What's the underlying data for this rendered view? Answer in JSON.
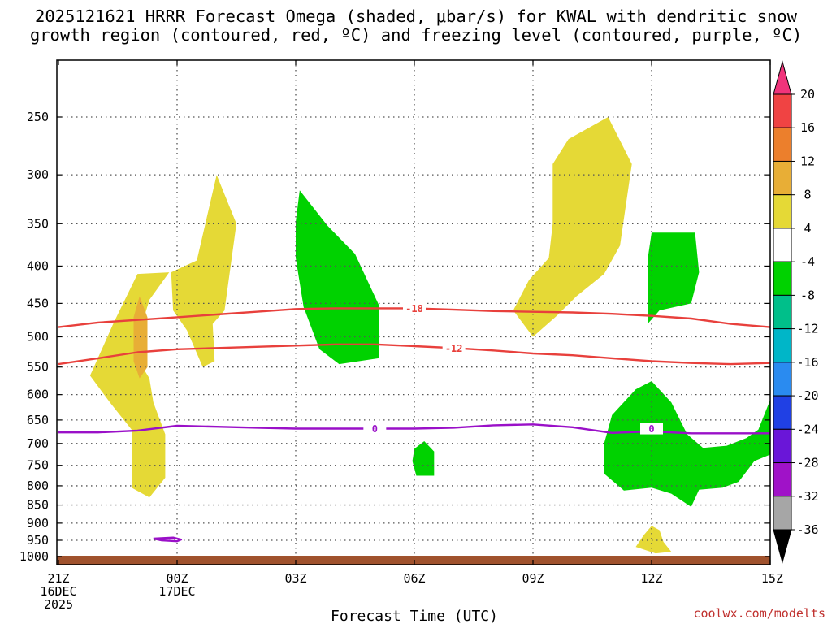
{
  "chart_data": {
    "type": "time-height",
    "title": {
      "line1": "2025121621 HRRR Forecast Omega (shaded, μbar/s) for KWAL with dendritic snow",
      "line2": "growth region (contoured, red, ºC) and freezing level (contoured, purple, ºC)"
    },
    "xlabel": "Forecast Time (UTC)",
    "credit": "coolwx.com/modelts",
    "xlim_hours": [
      0,
      18
    ],
    "ylim_hpa": [
      1000,
      200
    ],
    "x_ticks": [
      {
        "h": 0,
        "lines": [
          "21Z",
          "16DEC",
          "2025"
        ]
      },
      {
        "h": 3,
        "lines": [
          "00Z",
          "17DEC"
        ]
      },
      {
        "h": 6,
        "lines": [
          "03Z"
        ]
      },
      {
        "h": 9,
        "lines": [
          "06Z"
        ]
      },
      {
        "h": 12,
        "lines": [
          "09Z"
        ]
      },
      {
        "h": 15,
        "lines": [
          "12Z"
        ]
      },
      {
        "h": 18,
        "lines": [
          "15Z"
        ]
      }
    ],
    "y_ticks": [
      250,
      300,
      350,
      400,
      450,
      500,
      550,
      600,
      650,
      700,
      750,
      800,
      850,
      900,
      950,
      1000
    ],
    "colorbar": {
      "levels": [
        20,
        16,
        12,
        8,
        4,
        -4,
        -8,
        -12,
        -16,
        -20,
        -24,
        -28,
        -32,
        -36
      ],
      "colors": [
        "#f0347b",
        "#f04343",
        "#ec7f2c",
        "#e8ae36",
        "#e5d936",
        "#ffffff",
        "#00d200",
        "#00bf8a",
        "#00b6c8",
        "#2a8bf0",
        "#2040e4",
        "#6a16d8",
        "#a012c8",
        "#a6a6a6",
        "#000000"
      ]
    },
    "omega_regions": [
      {
        "name": "yellow-left-lower",
        "value_range": "4 to 8",
        "color": "#e5d936",
        "points": [
          [
            0.8,
            565
          ],
          [
            1.4,
            478
          ],
          [
            2.0,
            410
          ],
          [
            2.8,
            408
          ],
          [
            2.3,
            445
          ],
          [
            1.9,
            525
          ],
          [
            2.3,
            570
          ],
          [
            2.4,
            615
          ],
          [
            2.7,
            680
          ],
          [
            2.7,
            780
          ],
          [
            2.3,
            830
          ],
          [
            1.85,
            805
          ],
          [
            1.85,
            670
          ],
          [
            1.3,
            615
          ]
        ]
      },
      {
        "name": "yellow-left-upper",
        "value_range": "4 to 8",
        "color": "#e5d936",
        "points": [
          [
            2.85,
            408
          ],
          [
            3.5,
            393
          ],
          [
            4.0,
            300
          ],
          [
            4.5,
            350
          ],
          [
            4.2,
            460
          ],
          [
            3.9,
            480
          ],
          [
            3.95,
            540
          ],
          [
            3.65,
            550
          ],
          [
            3.25,
            490
          ],
          [
            2.9,
            460
          ]
        ]
      },
      {
        "name": "orange-left-core",
        "value_range": "8 to 12",
        "color": "#e8ae36",
        "points": [
          [
            1.9,
            470
          ],
          [
            2.05,
            440
          ],
          [
            2.25,
            470
          ],
          [
            2.25,
            550
          ],
          [
            2.05,
            570
          ],
          [
            1.9,
            540
          ]
        ]
      },
      {
        "name": "green-left",
        "value_range": "-8 to -4",
        "color": "#00d200",
        "points": [
          [
            6.0,
            348
          ],
          [
            6.1,
            315
          ],
          [
            6.8,
            352
          ],
          [
            7.5,
            385
          ],
          [
            8.1,
            452
          ],
          [
            8.1,
            535
          ],
          [
            7.1,
            545
          ],
          [
            6.6,
            520
          ],
          [
            6.2,
            455
          ],
          [
            6.0,
            390
          ]
        ]
      },
      {
        "name": "green-small",
        "value_range": "-8 to -4",
        "color": "#00d200",
        "points": [
          [
            9.0,
            712
          ],
          [
            9.25,
            695
          ],
          [
            9.5,
            718
          ],
          [
            9.5,
            775
          ],
          [
            9.05,
            775
          ],
          [
            8.95,
            740
          ]
        ]
      },
      {
        "name": "yellow-right-upper",
        "value_range": "4 to 8",
        "color": "#e5d936",
        "points": [
          [
            11.5,
            460
          ],
          [
            11.9,
            418
          ],
          [
            12.4,
            390
          ],
          [
            12.5,
            350
          ],
          [
            12.5,
            290
          ],
          [
            12.9,
            268
          ],
          [
            13.9,
            250
          ],
          [
            14.5,
            290
          ],
          [
            14.2,
            375
          ],
          [
            13.8,
            410
          ],
          [
            13.1,
            440
          ],
          [
            12.6,
            468
          ],
          [
            12.0,
            500
          ]
        ]
      },
      {
        "name": "green-right-upper",
        "value_range": "-8 to -4",
        "color": "#00d200",
        "points": [
          [
            14.9,
            392
          ],
          [
            15.0,
            360
          ],
          [
            16.1,
            360
          ],
          [
            16.2,
            408
          ],
          [
            16.0,
            450
          ],
          [
            15.2,
            460
          ],
          [
            14.9,
            480
          ],
          [
            14.9,
            440
          ]
        ]
      },
      {
        "name": "green-right-lower",
        "value_range": "-8 to -4",
        "color": "#00d200",
        "points": [
          [
            14.6,
            590
          ],
          [
            15.0,
            575
          ],
          [
            15.5,
            615
          ],
          [
            15.9,
            680
          ],
          [
            16.3,
            710
          ],
          [
            16.9,
            705
          ],
          [
            17.4,
            688
          ],
          [
            17.7,
            670
          ],
          [
            18.0,
            610
          ],
          [
            18.0,
            725
          ],
          [
            17.6,
            740
          ],
          [
            17.2,
            790
          ],
          [
            16.8,
            805
          ],
          [
            16.2,
            810
          ],
          [
            16.0,
            855
          ],
          [
            15.5,
            820
          ],
          [
            15.0,
            805
          ],
          [
            14.3,
            812
          ],
          [
            13.8,
            770
          ],
          [
            13.8,
            700
          ],
          [
            14.0,
            640
          ]
        ]
      },
      {
        "name": "yellow-right-small",
        "value_range": "4 to 8",
        "color": "#e5d936",
        "points": [
          [
            14.6,
            970
          ],
          [
            14.8,
            935
          ],
          [
            15.0,
            908
          ],
          [
            15.2,
            920
          ],
          [
            15.3,
            955
          ],
          [
            15.5,
            985
          ],
          [
            15.1,
            990
          ]
        ]
      }
    ],
    "contours": [
      {
        "name": "dgz-minus-18",
        "label": "-18",
        "color": "#e8403c",
        "label_h": 9.0,
        "points": [
          [
            0,
            485
          ],
          [
            1,
            478
          ],
          [
            2,
            474
          ],
          [
            3,
            470
          ],
          [
            4,
            466
          ],
          [
            5,
            462
          ],
          [
            6,
            458
          ],
          [
            7,
            457
          ],
          [
            8,
            457
          ],
          [
            9,
            457
          ],
          [
            10,
            459
          ],
          [
            11,
            461
          ],
          [
            12,
            462
          ],
          [
            13,
            463
          ],
          [
            14,
            465
          ],
          [
            15,
            468
          ],
          [
            16,
            472
          ],
          [
            17,
            480
          ],
          [
            18,
            485
          ]
        ]
      },
      {
        "name": "dgz-minus-12",
        "label": "-12",
        "color": "#e8403c",
        "label_h": 10.0,
        "points": [
          [
            0,
            545
          ],
          [
            1,
            535
          ],
          [
            2,
            525
          ],
          [
            3,
            520
          ],
          [
            4,
            518
          ],
          [
            5,
            516
          ],
          [
            6,
            514
          ],
          [
            7,
            512
          ],
          [
            8,
            512
          ],
          [
            9,
            515
          ],
          [
            10,
            518
          ],
          [
            11,
            522
          ],
          [
            12,
            527
          ],
          [
            13,
            530
          ],
          [
            14,
            535
          ],
          [
            15,
            540
          ],
          [
            16,
            543
          ],
          [
            17,
            545
          ],
          [
            18,
            543
          ]
        ]
      },
      {
        "name": "freezing-level-main",
        "label": "0",
        "color": "#9a10c8",
        "label_h": 8.0,
        "points": [
          [
            0,
            676
          ],
          [
            1,
            676
          ],
          [
            2,
            672
          ],
          [
            3,
            662
          ],
          [
            4,
            664
          ],
          [
            5,
            666
          ],
          [
            6,
            668
          ],
          [
            7,
            668
          ],
          [
            8,
            668
          ],
          [
            9,
            668
          ],
          [
            10,
            666
          ],
          [
            11,
            661
          ],
          [
            12,
            659
          ],
          [
            13,
            665
          ],
          [
            14,
            677
          ],
          [
            15,
            674
          ],
          [
            16,
            678
          ],
          [
            17,
            678
          ],
          [
            18,
            678
          ]
        ]
      },
      {
        "name": "freezing-level-loop",
        "label": "",
        "color": "#9a10c8",
        "label_h": null,
        "points": [
          [
            2.4,
            945
          ],
          [
            2.9,
            942
          ],
          [
            3.1,
            948
          ],
          [
            3.0,
            953
          ],
          [
            2.6,
            950
          ],
          [
            2.4,
            945
          ]
        ]
      }
    ],
    "contour_label_extra": {
      "name": "freezing-level-label-12z",
      "label": "0",
      "color": "#9a10c8",
      "h": 15.0,
      "hpa": 668
    },
    "ground": {
      "color": "#a0522d"
    }
  }
}
